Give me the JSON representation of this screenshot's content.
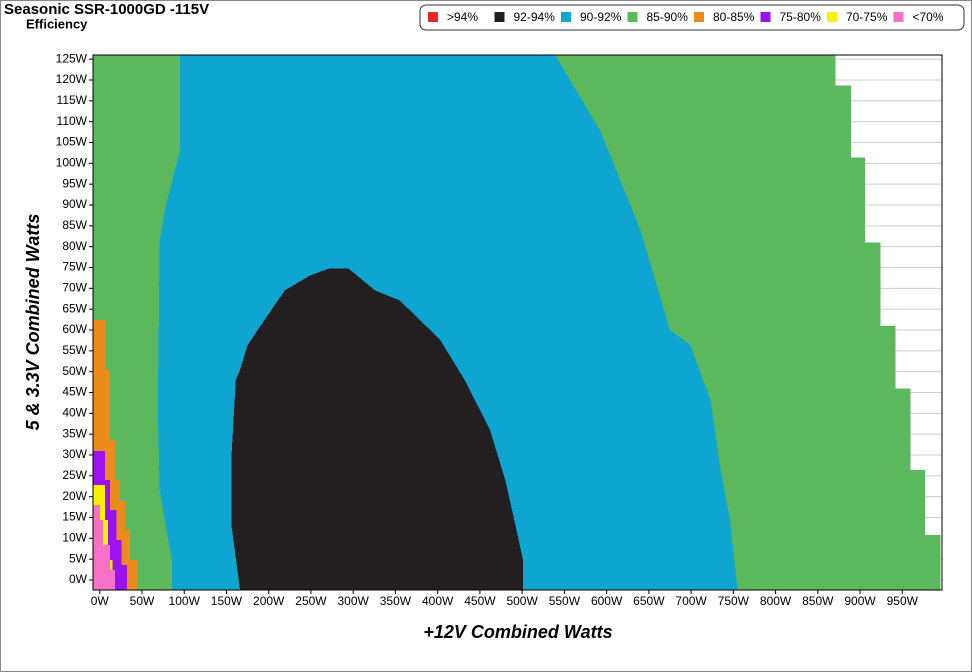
{
  "chart_data": {
    "type": "region",
    "title": "Seasonic SSR-1000GD -115V",
    "subtitle": "Efficiency",
    "x_label": "+12V Combined Watts",
    "y_label": "5 & 3.3V Combined Watts",
    "xlim": [
      -8,
      997
    ],
    "ylim": [
      -2.4,
      126
    ],
    "xticks": [
      {
        "value": 0,
        "label": "0W"
      },
      {
        "value": 50,
        "label": "50W"
      },
      {
        "value": 100,
        "label": "100W"
      },
      {
        "value": 150,
        "label": "150W"
      },
      {
        "value": 200,
        "label": "200W"
      },
      {
        "value": 250,
        "label": "250W"
      },
      {
        "value": 300,
        "label": "300W"
      },
      {
        "value": 350,
        "label": "350W"
      },
      {
        "value": 400,
        "label": "400W"
      },
      {
        "value": 450,
        "label": "450W"
      },
      {
        "value": 500,
        "label": "500W"
      },
      {
        "value": 550,
        "label": "550W"
      },
      {
        "value": 600,
        "label": "600W"
      },
      {
        "value": 650,
        "label": "650W"
      },
      {
        "value": 700,
        "label": "700W"
      },
      {
        "value": 750,
        "label": "750W"
      },
      {
        "value": 800,
        "label": "800W"
      },
      {
        "value": 850,
        "label": "850W"
      },
      {
        "value": 900,
        "label": "900W"
      },
      {
        "value": 950,
        "label": "950W"
      }
    ],
    "yticks": [
      {
        "value": 0,
        "label": "0W"
      },
      {
        "value": 5,
        "label": "5W"
      },
      {
        "value": 10,
        "label": "10W"
      },
      {
        "value": 15,
        "label": "15W"
      },
      {
        "value": 20,
        "label": "20W"
      },
      {
        "value": 25,
        "label": "25W"
      },
      {
        "value": 30,
        "label": "30W"
      },
      {
        "value": 35,
        "label": "35W"
      },
      {
        "value": 40,
        "label": "40W"
      },
      {
        "value": 45,
        "label": "45W"
      },
      {
        "value": 50,
        "label": "50W"
      },
      {
        "value": 55,
        "label": "55W"
      },
      {
        "value": 60,
        "label": "60W"
      },
      {
        "value": 65,
        "label": "65W"
      },
      {
        "value": 70,
        "label": "70W"
      },
      {
        "value": 75,
        "label": "75W"
      },
      {
        "value": 80,
        "label": "80W"
      },
      {
        "value": 85,
        "label": "85W"
      },
      {
        "value": 90,
        "label": "90W"
      },
      {
        "value": 95,
        "label": "95W"
      },
      {
        "value": 100,
        "label": "100W"
      },
      {
        "value": 105,
        "label": "105W"
      },
      {
        "value": 110,
        "label": "110W"
      },
      {
        "value": 115,
        "label": "115W"
      },
      {
        "value": 120,
        "label": "120W"
      },
      {
        "value": 125,
        "label": "125W"
      }
    ],
    "grid": true,
    "legend": "top-right",
    "series": [
      {
        "name": ">94%",
        "color": "#e8262b",
        "regions": []
      },
      {
        "name": "92-94%",
        "color": "#231f20",
        "regions": [
          {
            "x": [
              166,
              156,
              156,
              161,
              166,
              175,
              195,
              219,
              249,
              272,
              294,
              326,
              355,
              379,
              403,
              432,
              462,
              480,
              492,
              501,
              501
            ],
            "y": [
              -2.4,
              13,
              30,
              48,
              50.4,
              56.4,
              62.4,
              69.5,
              73.1,
              74.8,
              74.8,
              69.5,
              67.1,
              62.4,
              57.6,
              48,
              36,
              24,
              13.2,
              4.8,
              -2.4
            ]
          }
        ]
      },
      {
        "name": "90-92%",
        "color": "#0ea5d1",
        "regions": [
          {
            "x": [
              94.8,
              539,
              592,
              640,
              675,
              699,
              723,
              735,
              746,
              755,
              85.3,
              85.3,
              77,
              71,
              68.7,
              71,
              77,
              88.9,
              94.8
            ],
            "y": [
              126,
              126,
              108,
              84,
              60,
              56.4,
              43.2,
              26.4,
              14.4,
              -2.4,
              -2.4,
              4.8,
              14.4,
              21.6,
              40.8,
              81.5,
              88.7,
              98.3,
              103
            ]
          },
          {
            "x": [
              104,
              110,
              124,
              138,
              143,
              138,
              124,
              110
            ],
            "y": [
              112,
              114.5,
              115,
              114.5,
              112,
              109.5,
              109,
              109.5
            ]
          }
        ]
      },
      {
        "name": "85-90%",
        "color": "#5cb85c",
        "regions": [
          {
            "x": [
              -8,
              -8,
              871,
              871,
              889,
              889,
              906,
              906,
              924,
              924,
              942,
              942,
              960,
              960,
              977,
              977,
              995,
              995
            ],
            "y": [
              -2.4,
              126,
              126,
              118.7,
              118.7,
              101.4,
              101.4,
              81,
              81,
              61,
              61,
              46,
              46,
              26.4,
              26.4,
              10.8,
              10.8,
              -2.4
            ]
          }
        ]
      },
      {
        "name": "80-85%",
        "color": "#ec8b1b",
        "regions": [
          {
            "x": [
              -8,
              6,
              6,
              12,
              12,
              18,
              18,
              24,
              24,
              30,
              30,
              36,
              36,
              44,
              44,
              -8
            ],
            "y": [
              62.4,
              62.4,
              50.4,
              50.4,
              33.6,
              33.6,
              24,
              24,
              19,
              19,
              12,
              12,
              4.8,
              4.8,
              -2.4,
              -2.4
            ]
          }
        ]
      },
      {
        "name": "75-80%",
        "color": "#9b12f0",
        "regions": [
          {
            "x": [
              -8,
              6,
              6,
              12,
              12,
              20,
              20,
              26,
              26,
              32,
              32,
              -8
            ],
            "y": [
              31,
              31,
              24,
              24,
              16.8,
              16.8,
              9.6,
              9.6,
              3.6,
              3.6,
              -2.4,
              -2.4
            ]
          }
        ]
      },
      {
        "name": "70-75%",
        "color": "#f8f200",
        "regions": [
          {
            "x": [
              -8,
              6,
              6,
              10,
              10,
              15,
              15,
              -8
            ],
            "y": [
              22.8,
              22.8,
              14.4,
              14.4,
              4.8,
              4.8,
              -2.4,
              -2.4
            ]
          }
        ]
      },
      {
        "name": "<70%",
        "color": "#f772c6",
        "regions": [
          {
            "x": [
              -8,
              0,
              0,
              4,
              4,
              12,
              12,
              18,
              18,
              -8
            ],
            "y": [
              18,
              18,
              14.4,
              14.4,
              8.4,
              8.4,
              2.4,
              2.4,
              -2.4,
              -2.4
            ]
          }
        ]
      }
    ]
  }
}
